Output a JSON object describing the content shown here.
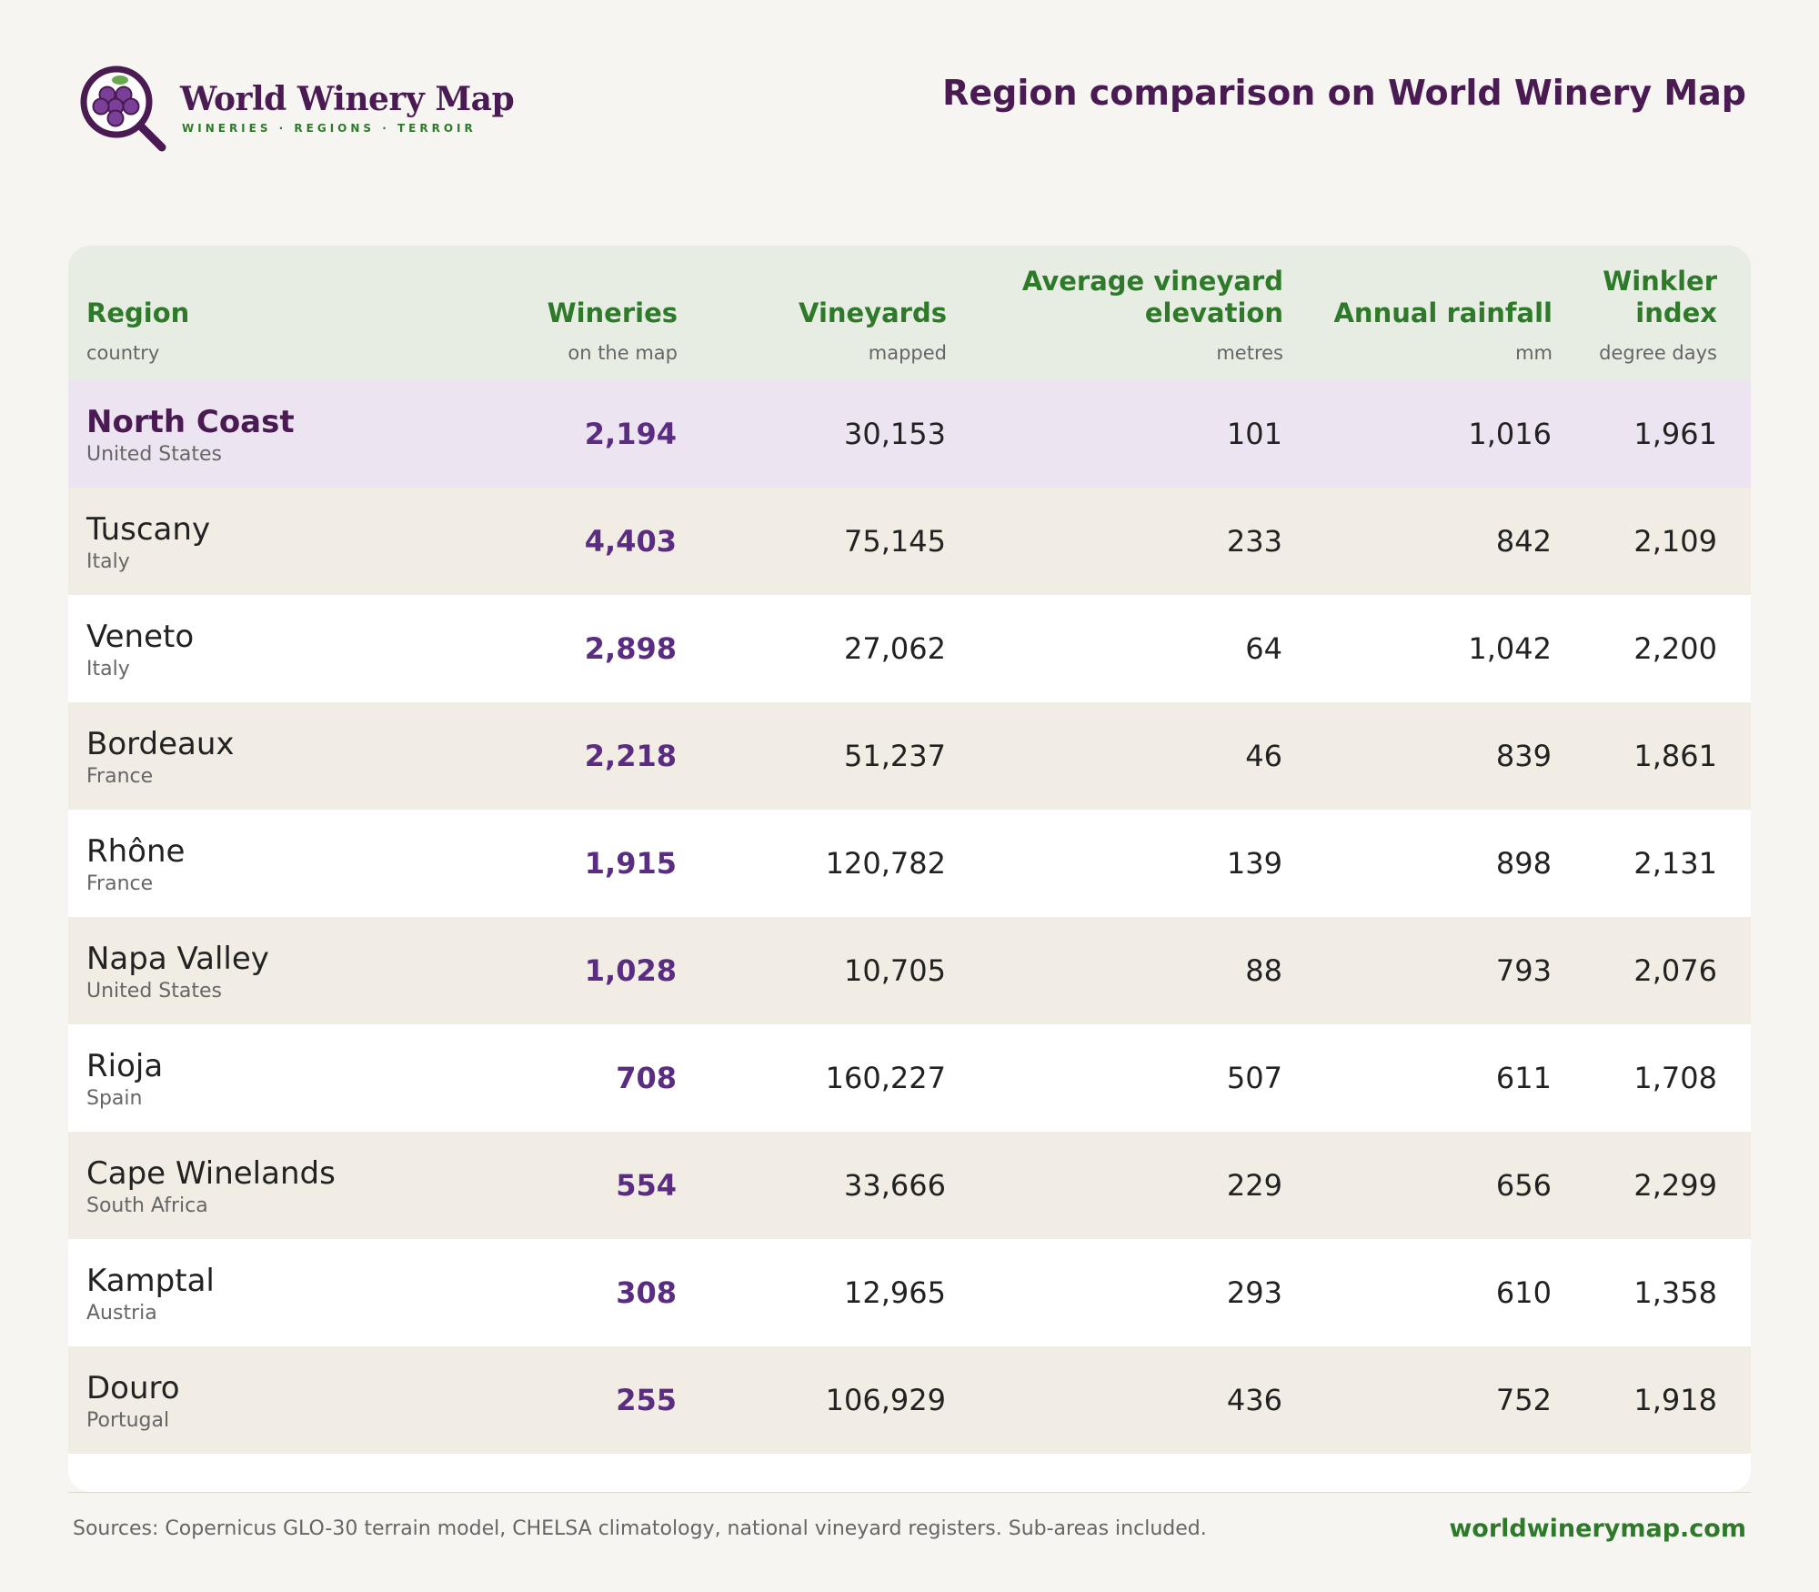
{
  "brand": {
    "name": "World Winery Map",
    "tagline": "WINERIES · REGIONS · TERROIR",
    "logo_icon": "grape-magnifier-icon",
    "colors": {
      "plum": "#4a1a52",
      "green": "#2f7a2a",
      "grape": "#5a2d82"
    }
  },
  "title": "Region comparison on World Winery Map",
  "table": {
    "columns": [
      {
        "label": "Region",
        "unit": "country"
      },
      {
        "label": "Wineries",
        "unit": "on the map"
      },
      {
        "label": "Vineyards",
        "unit": "mapped"
      },
      {
        "label": "Average vineyard elevation",
        "unit": "metres"
      },
      {
        "label": "Annual rainfall",
        "unit": "mm"
      },
      {
        "label": "Winkler index",
        "unit": "degree days"
      }
    ],
    "rows": [
      {
        "region": "North Coast",
        "country": "United States",
        "wineries": "2,194",
        "vineyards": "30,153",
        "elevation": "101",
        "rainfall": "1,016",
        "winkler": "1,961",
        "highlighted": true
      },
      {
        "region": "Tuscany",
        "country": "Italy",
        "wineries": "4,403",
        "vineyards": "75,145",
        "elevation": "233",
        "rainfall": "842",
        "winkler": "2,109"
      },
      {
        "region": "Veneto",
        "country": "Italy",
        "wineries": "2,898",
        "vineyards": "27,062",
        "elevation": "64",
        "rainfall": "1,042",
        "winkler": "2,200"
      },
      {
        "region": "Bordeaux",
        "country": "France",
        "wineries": "2,218",
        "vineyards": "51,237",
        "elevation": "46",
        "rainfall": "839",
        "winkler": "1,861"
      },
      {
        "region": "Rhône",
        "country": "France",
        "wineries": "1,915",
        "vineyards": "120,782",
        "elevation": "139",
        "rainfall": "898",
        "winkler": "2,131"
      },
      {
        "region": "Napa Valley",
        "country": "United States",
        "wineries": "1,028",
        "vineyards": "10,705",
        "elevation": "88",
        "rainfall": "793",
        "winkler": "2,076"
      },
      {
        "region": "Rioja",
        "country": "Spain",
        "wineries": "708",
        "vineyards": "160,227",
        "elevation": "507",
        "rainfall": "611",
        "winkler": "1,708"
      },
      {
        "region": "Cape Winelands",
        "country": "South Africa",
        "wineries": "554",
        "vineyards": "33,666",
        "elevation": "229",
        "rainfall": "656",
        "winkler": "2,299"
      },
      {
        "region": "Kamptal",
        "country": "Austria",
        "wineries": "308",
        "vineyards": "12,965",
        "elevation": "293",
        "rainfall": "610",
        "winkler": "1,358"
      },
      {
        "region": "Douro",
        "country": "Portugal",
        "wineries": "255",
        "vineyards": "106,929",
        "elevation": "436",
        "rainfall": "752",
        "winkler": "1,918"
      }
    ]
  },
  "footer": {
    "sources": "Sources: Copernicus GLO-30 terrain model, CHELSA climatology, national vineyard registers. Sub-areas included.",
    "url": "worldwinerymap.com"
  }
}
